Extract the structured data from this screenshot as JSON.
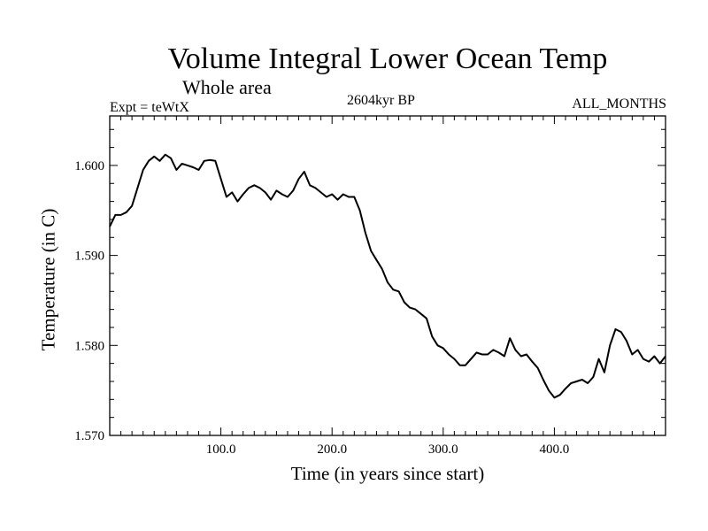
{
  "chart_data": {
    "type": "line",
    "title": "Volume Integral Lower Ocean Temp",
    "subtitle": "Whole area",
    "annotations": {
      "left": "Expt = teWtX",
      "center": "2604kyr BP",
      "right": "ALL_MONTHS"
    },
    "xlabel": "Time (in years since start)",
    "ylabel": "Temperature (in C)",
    "xlim": [
      0,
      500
    ],
    "ylim": [
      1.57,
      1.6055
    ],
    "x_ticks": [
      100,
      200,
      300,
      400
    ],
    "x_tick_labels": [
      "100.0",
      "200.0",
      "300.0",
      "400.0"
    ],
    "y_ticks": [
      1.57,
      1.58,
      1.59,
      1.6
    ],
    "y_tick_labels": [
      "1.570",
      "1.580",
      "1.590",
      "1.600"
    ],
    "grid": false,
    "series": [
      {
        "name": "Volume Integral Lower Ocean Temp",
        "x": [
          0,
          5,
          10,
          15,
          20,
          25,
          30,
          35,
          40,
          45,
          50,
          55,
          60,
          65,
          70,
          75,
          80,
          85,
          90,
          95,
          100,
          105,
          110,
          115,
          120,
          125,
          130,
          135,
          140,
          145,
          150,
          155,
          160,
          165,
          170,
          175,
          180,
          185,
          190,
          195,
          200,
          205,
          210,
          215,
          220,
          225,
          230,
          235,
          240,
          245,
          250,
          255,
          260,
          265,
          270,
          275,
          280,
          285,
          290,
          295,
          300,
          305,
          310,
          315,
          320,
          325,
          330,
          335,
          340,
          345,
          350,
          355,
          360,
          365,
          370,
          375,
          380,
          385,
          390,
          395,
          400,
          405,
          410,
          415,
          420,
          425,
          430,
          435,
          440,
          445,
          450,
          455,
          460,
          465,
          470,
          475,
          480,
          485,
          490,
          495,
          500
        ],
        "y": [
          1.5932,
          1.5945,
          1.5945,
          1.5948,
          1.5955,
          1.5975,
          1.5995,
          1.6005,
          1.601,
          1.6005,
          1.6012,
          1.6008,
          1.5995,
          1.6002,
          1.6,
          1.5998,
          1.5995,
          1.6005,
          1.6006,
          1.6005,
          1.5985,
          1.5965,
          1.597,
          1.596,
          1.5968,
          1.5975,
          1.5978,
          1.5975,
          1.597,
          1.5962,
          1.5972,
          1.5968,
          1.5965,
          1.5972,
          1.5985,
          1.5993,
          1.5978,
          1.5975,
          1.597,
          1.5965,
          1.5968,
          1.5962,
          1.5968,
          1.5965,
          1.5965,
          1.595,
          1.5925,
          1.5905,
          1.5895,
          1.5885,
          1.587,
          1.5862,
          1.586,
          1.5848,
          1.5842,
          1.584,
          1.5835,
          1.583,
          1.581,
          1.58,
          1.5797,
          1.579,
          1.5785,
          1.5778,
          1.5778,
          1.5785,
          1.5792,
          1.579,
          1.579,
          1.5795,
          1.5792,
          1.5788,
          1.5808,
          1.5795,
          1.5788,
          1.579,
          1.5782,
          1.5775,
          1.5762,
          1.575,
          1.5742,
          1.5745,
          1.5752,
          1.5758,
          1.576,
          1.5762,
          1.5758,
          1.5765,
          1.5785,
          1.577,
          1.58,
          1.5818,
          1.5815,
          1.5805,
          1.579,
          1.5795,
          1.5785,
          1.5782,
          1.5788,
          1.578,
          1.5788
        ]
      }
    ]
  }
}
